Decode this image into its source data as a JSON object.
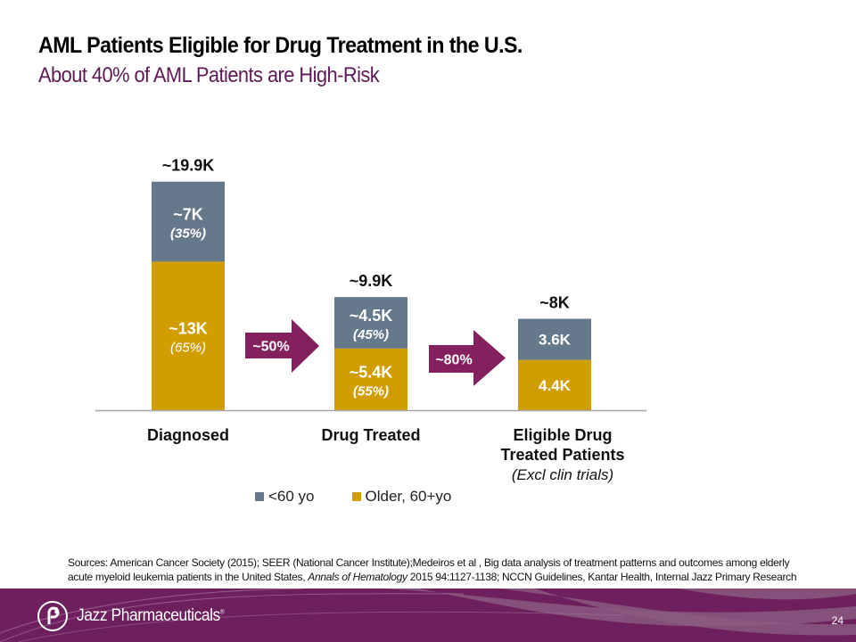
{
  "header": {
    "title": "AML Patients Eligible for Drug Treatment in the U.S.",
    "subtitle": "About 40% of AML Patients are High-Risk"
  },
  "colors": {
    "under60": "#66798b",
    "older60": "#d19e00",
    "arrow": "#85205f",
    "subtitle": "#5e1a54",
    "footer": "#6e1f5e"
  },
  "chart_data": {
    "type": "bar",
    "stacked": true,
    "title": "",
    "xlabel": "",
    "ylabel": "",
    "ylim": [
      0,
      19.9
    ],
    "grid": false,
    "legend_position": "bottom",
    "units": "K patients",
    "categories": [
      "Diagnosed",
      "Drug Treated",
      "Eligible Drug Treated Patients"
    ],
    "category_sublabels": [
      "",
      "",
      "(Excl clin trials)"
    ],
    "category_label_lines": [
      [
        "Diagnosed"
      ],
      [
        "Drug Treated"
      ],
      [
        "Eligible Drug",
        "Treated Patients"
      ]
    ],
    "totals": [
      19.9,
      9.9,
      8.0
    ],
    "total_labels": [
      "~19.9K",
      "~9.9K",
      "~8K"
    ],
    "series": [
      {
        "name": "Older, 60+yo",
        "color": "#d19e00",
        "values": [
          13.0,
          5.4,
          4.4
        ],
        "labels": [
          "~13K",
          "~5.4K",
          "4.4K"
        ],
        "pct_labels": [
          "(65%)",
          "(55%)",
          ""
        ]
      },
      {
        "name": "<60 yo",
        "color": "#66798b",
        "values": [
          7.0,
          4.5,
          3.6
        ],
        "labels": [
          "~7K",
          "~4.5K",
          "3.6K"
        ],
        "pct_labels": [
          "(35%)",
          "(45%)",
          ""
        ]
      }
    ],
    "transitions": [
      {
        "from": "Diagnosed",
        "to": "Drug Treated",
        "label": "~50%"
      },
      {
        "from": "Drug Treated",
        "to": "Eligible Drug Treated Patients",
        "label": "~80%"
      }
    ]
  },
  "legend": {
    "items": [
      {
        "label": "<60 yo",
        "color": "#66798b"
      },
      {
        "label": "Older, 60+yo",
        "color": "#d19e00"
      }
    ]
  },
  "sources": {
    "prefix": "Sources:   American Cancer Society (2015); SEER (National Cancer Institute);Medeiros et al , Big data analysis of treatment patterns and outcomes among elderly acute myeloid leukemia patients in the United States, ",
    "journal": "Annals of Hematology",
    "suffix": " 2015 94:1127-1138; NCCN Guidelines, Kantar Health, Internal Jazz Primary Research"
  },
  "footer": {
    "brand": "Jazz Pharmaceuticals",
    "trademark": "®",
    "page_number": "24"
  }
}
